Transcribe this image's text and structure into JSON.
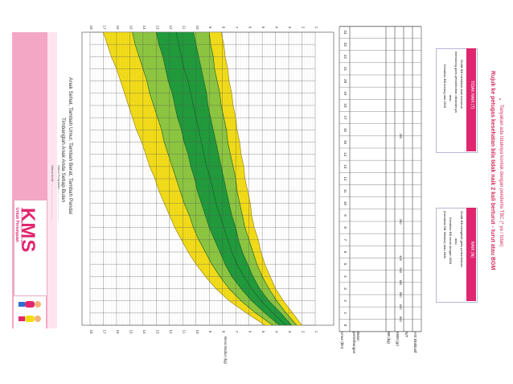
{
  "kms_logo": "KMS",
  "kms_sub": "KARTU MENUJU SEHAT",
  "kms_gender": "Untuk Perempuan",
  "nama_anak_label": "Nama Anak",
  "nama_posyandu_label": "Nama Posyandu",
  "dots": ":.........................................",
  "title_line1": "Timbanglah Anak Anda Setiap Bulan",
  "title_line2": "Anak Sehat, Tambah Umur, Tambah Berat, Tambah Pandai",
  "y_axis_label": "Berat Badan (kg)",
  "row_labels": [
    "Umur (bln)",
    "Bulan penimbangan",
    "BB (kg)",
    "KBM (gr)",
    "N/T",
    "ASI Eksklusif"
  ],
  "kbm_values": [
    "800",
    "900",
    "800",
    "600",
    "500",
    "400",
    "300",
    "200"
  ],
  "naik_title": "NAIK (N)",
  "naik_lines": [
    "Grafik BB mengikuti garis pertumbuhan",
    "atau",
    "Kenaikan BB sama dengan KBM",
    "(Kenaikan BB Minimal) atau lebih"
  ],
  "tidak_naik_title": "TIDAK NAIK (T)",
  "tidak_naik_lines": [
    "Grafik BB mendatar atau menurun",
    "memotong garis pertumbuhan dibawahnya",
    "atau",
    "Kenaikan BB kurang dari KBM"
  ],
  "rujuk_text": "Rujuk ke petugas kesehatan bila tidak naik 2 kali berturut - turut atau BGM",
  "tbc_text": "Tanyakan ada tidaknya kontak dengan penderita TBC (* ya / tidak)",
  "colors": {
    "pink": "#f4a7c4",
    "magenta": "#e0266f",
    "yellow": "#f3dc17",
    "light_green": "#8cc63f",
    "green": "#1f9a3a",
    "title_red": "#d62d5c"
  },
  "chart_data": {
    "type": "line",
    "title": "Timbanglah Anak Anda Setiap Bulan",
    "xlabel": "Umur (bln)",
    "ylabel": "Berat Badan (kg)",
    "xlim": [
      0,
      24
    ],
    "ylim": [
      1,
      18
    ],
    "x_ticks": [
      0,
      1,
      2,
      3,
      4,
      5,
      6,
      7,
      8,
      9,
      10,
      11,
      12,
      13,
      14,
      15,
      16,
      17,
      18,
      19,
      20,
      21,
      22,
      23,
      24
    ],
    "y_ticks": [
      1,
      2,
      3,
      4,
      5,
      6,
      7,
      8,
      9,
      10,
      11,
      12,
      13,
      14,
      15,
      16,
      17,
      18
    ],
    "x": [
      0,
      1,
      2,
      3,
      4,
      5,
      6,
      7,
      8,
      9,
      10,
      11,
      12,
      13,
      14,
      15,
      16,
      17,
      18,
      19,
      20,
      21,
      22,
      23,
      24
    ],
    "series": [
      {
        "values": [
          2.0,
          2.7,
          3.4,
          4.0,
          4.4,
          4.8,
          5.1,
          5.3,
          5.6,
          5.8,
          5.9,
          6.1,
          6.3,
          6.4,
          6.6,
          6.7,
          6.9,
          7.0,
          7.2,
          7.3,
          7.5,
          7.6,
          7.8,
          7.9,
          8.1
        ]
      },
      {
        "values": [
          2.4,
          3.2,
          3.9,
          4.5,
          5.0,
          5.4,
          5.7,
          6.0,
          6.3,
          6.5,
          6.7,
          6.9,
          7.0,
          7.2,
          7.4,
          7.6,
          7.7,
          7.9,
          8.1,
          8.2,
          8.4,
          8.6,
          8.7,
          8.9,
          9.0
        ]
      },
      {
        "values": [
          2.8,
          3.6,
          4.5,
          5.2,
          5.7,
          6.1,
          6.5,
          6.8,
          7.0,
          7.3,
          7.5,
          7.7,
          7.9,
          8.1,
          8.3,
          8.5,
          8.7,
          8.9,
          9.1,
          9.2,
          9.4,
          9.6,
          9.8,
          10.0,
          10.2
        ]
      },
      {
        "values": [
          3.2,
          4.2,
          5.1,
          5.8,
          6.4,
          6.9,
          7.3,
          7.6,
          7.9,
          8.2,
          8.5,
          8.7,
          8.9,
          9.2,
          9.4,
          9.6,
          9.8,
          10.0,
          10.2,
          10.4,
          10.6,
          10.9,
          11.1,
          11.3,
          11.5
        ]
      },
      {
        "values": [
          3.7,
          4.8,
          5.8,
          6.6,
          7.3,
          7.8,
          8.2,
          8.6,
          9.0,
          9.3,
          9.6,
          9.9,
          10.1,
          10.4,
          10.6,
          10.9,
          11.1,
          11.4,
          11.6,
          11.8,
          12.1,
          12.3,
          12.5,
          12.8,
          13.0
        ]
      },
      {
        "values": [
          4.2,
          5.5,
          6.6,
          7.5,
          8.2,
          8.8,
          9.3,
          9.8,
          10.2,
          10.5,
          10.9,
          11.2,
          11.5,
          11.8,
          12.1,
          12.4,
          12.6,
          12.9,
          13.2,
          13.5,
          13.7,
          14.0,
          14.3,
          14.6,
          14.8
        ]
      },
      {
        "values": [
          4.8,
          6.2,
          7.5,
          8.5,
          9.3,
          10.0,
          10.6,
          11.1,
          11.6,
          12.0,
          12.4,
          12.8,
          13.1,
          13.5,
          13.8,
          14.1,
          14.5,
          14.8,
          15.1,
          15.4,
          15.7,
          16.0,
          16.4,
          16.7,
          17.0
        ]
      }
    ]
  }
}
